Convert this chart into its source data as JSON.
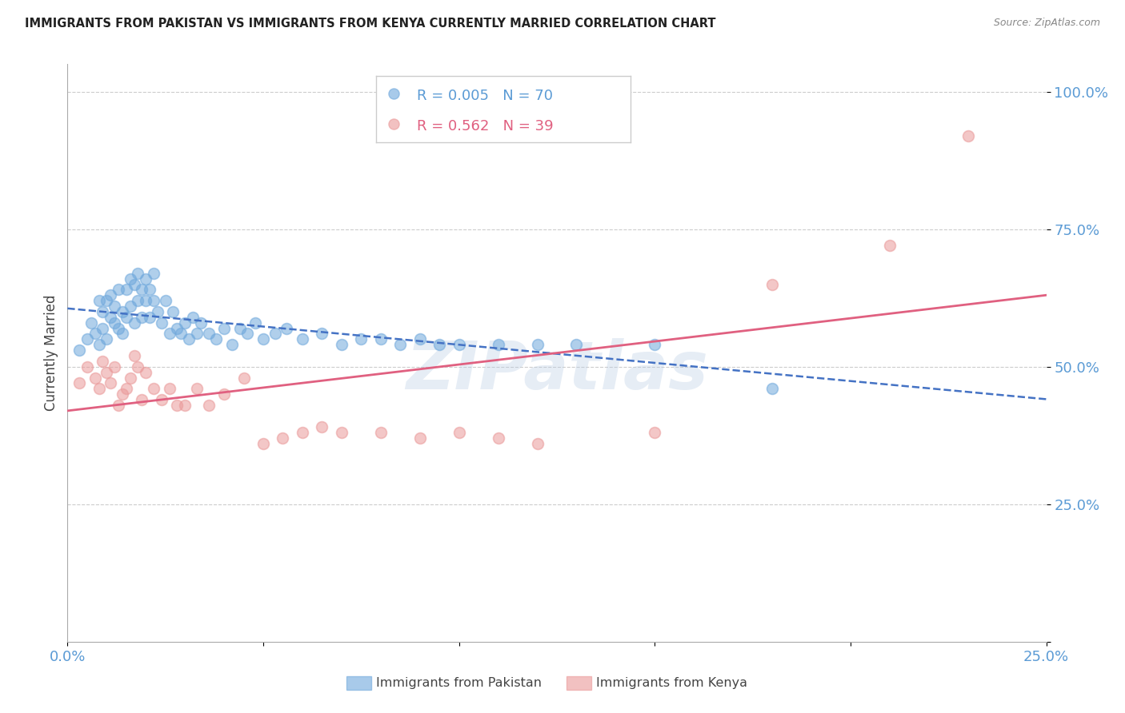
{
  "title": "IMMIGRANTS FROM PAKISTAN VS IMMIGRANTS FROM KENYA CURRENTLY MARRIED CORRELATION CHART",
  "source": "Source: ZipAtlas.com",
  "ylabel": "Currently Married",
  "xlim": [
    0.0,
    0.25
  ],
  "ylim": [
    0.0,
    1.05
  ],
  "x_tick_positions": [
    0.0,
    0.05,
    0.1,
    0.15,
    0.2,
    0.25
  ],
  "x_tick_labels": [
    "0.0%",
    "",
    "",
    "",
    "",
    "25.0%"
  ],
  "y_tick_positions": [
    0.0,
    0.25,
    0.5,
    0.75,
    1.0
  ],
  "y_tick_labels": [
    "",
    "25.0%",
    "50.0%",
    "75.0%",
    "100.0%"
  ],
  "pakistan_color": "#6fa8dc",
  "kenya_color": "#ea9999",
  "pakistan_line_color": "#4472c4",
  "kenya_line_color": "#e06080",
  "pakistan_R": 0.005,
  "pakistan_N": 70,
  "kenya_R": 0.562,
  "kenya_N": 39,
  "watermark": "ZIPatlas",
  "pakistan_x": [
    0.003,
    0.005,
    0.006,
    0.007,
    0.008,
    0.008,
    0.009,
    0.009,
    0.01,
    0.01,
    0.011,
    0.011,
    0.012,
    0.012,
    0.013,
    0.013,
    0.014,
    0.014,
    0.015,
    0.015,
    0.016,
    0.016,
    0.017,
    0.017,
    0.018,
    0.018,
    0.019,
    0.019,
    0.02,
    0.02,
    0.021,
    0.021,
    0.022,
    0.022,
    0.023,
    0.024,
    0.025,
    0.026,
    0.027,
    0.028,
    0.029,
    0.03,
    0.031,
    0.032,
    0.033,
    0.034,
    0.036,
    0.038,
    0.04,
    0.042,
    0.044,
    0.046,
    0.048,
    0.05,
    0.053,
    0.056,
    0.06,
    0.065,
    0.07,
    0.075,
    0.08,
    0.085,
    0.09,
    0.095,
    0.1,
    0.11,
    0.12,
    0.13,
    0.15,
    0.18
  ],
  "pakistan_y": [
    0.53,
    0.55,
    0.58,
    0.56,
    0.62,
    0.54,
    0.57,
    0.6,
    0.62,
    0.55,
    0.59,
    0.63,
    0.58,
    0.61,
    0.57,
    0.64,
    0.6,
    0.56,
    0.64,
    0.59,
    0.66,
    0.61,
    0.65,
    0.58,
    0.67,
    0.62,
    0.64,
    0.59,
    0.66,
    0.62,
    0.64,
    0.59,
    0.67,
    0.62,
    0.6,
    0.58,
    0.62,
    0.56,
    0.6,
    0.57,
    0.56,
    0.58,
    0.55,
    0.59,
    0.56,
    0.58,
    0.56,
    0.55,
    0.57,
    0.54,
    0.57,
    0.56,
    0.58,
    0.55,
    0.56,
    0.57,
    0.55,
    0.56,
    0.54,
    0.55,
    0.55,
    0.54,
    0.55,
    0.54,
    0.54,
    0.54,
    0.54,
    0.54,
    0.54,
    0.46
  ],
  "kenya_x": [
    0.003,
    0.005,
    0.007,
    0.008,
    0.009,
    0.01,
    0.011,
    0.012,
    0.013,
    0.014,
    0.015,
    0.016,
    0.017,
    0.018,
    0.019,
    0.02,
    0.022,
    0.024,
    0.026,
    0.028,
    0.03,
    0.033,
    0.036,
    0.04,
    0.045,
    0.05,
    0.055,
    0.06,
    0.065,
    0.07,
    0.08,
    0.09,
    0.1,
    0.11,
    0.12,
    0.15,
    0.18,
    0.21,
    0.23
  ],
  "kenya_y": [
    0.47,
    0.5,
    0.48,
    0.46,
    0.51,
    0.49,
    0.47,
    0.5,
    0.43,
    0.45,
    0.46,
    0.48,
    0.52,
    0.5,
    0.44,
    0.49,
    0.46,
    0.44,
    0.46,
    0.43,
    0.43,
    0.46,
    0.43,
    0.45,
    0.48,
    0.36,
    0.37,
    0.38,
    0.39,
    0.38,
    0.38,
    0.37,
    0.38,
    0.37,
    0.36,
    0.38,
    0.65,
    0.72,
    0.92
  ],
  "background_color": "#ffffff",
  "grid_color": "#cccccc",
  "tick_color": "#5b9bd5",
  "title_color": "#222222",
  "source_color": "#888888",
  "marker_size": 100,
  "marker_alpha": 0.55,
  "legend_box_color": "#eeeeee",
  "legend_border_color": "#cccccc"
}
